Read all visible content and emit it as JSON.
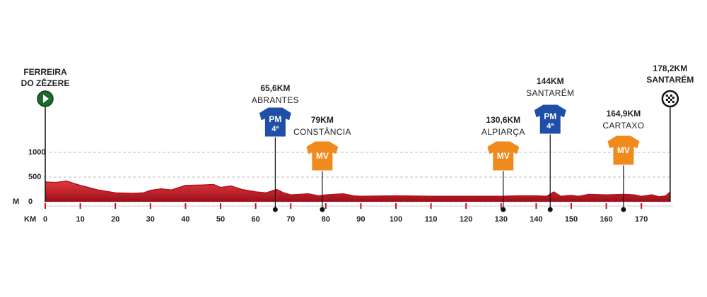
{
  "chart_data": {
    "type": "area",
    "x": [
      0,
      3,
      6,
      10,
      15,
      20,
      25,
      28,
      30,
      33,
      36,
      40,
      45,
      48,
      50,
      53,
      56,
      60,
      63,
      66,
      68,
      70,
      75,
      78,
      80,
      85,
      88,
      90,
      100,
      110,
      120,
      125,
      130,
      135,
      140,
      143,
      145,
      147,
      150,
      152,
      155,
      160,
      165,
      168,
      170,
      173,
      175,
      177,
      178.2
    ],
    "values": [
      400,
      390,
      420,
      330,
      240,
      180,
      170,
      180,
      230,
      260,
      240,
      330,
      340,
      350,
      290,
      320,
      250,
      200,
      180,
      250,
      180,
      140,
      160,
      120,
      140,
      160,
      120,
      110,
      120,
      110,
      110,
      110,
      110,
      120,
      120,
      110,
      200,
      110,
      130,
      110,
      150,
      140,
      150,
      140,
      110,
      140,
      100,
      120,
      200
    ],
    "color": "#d81e2a",
    "xlim": [
      0,
      178.2
    ],
    "ylim": [
      0,
      1000
    ],
    "xticks": [
      0,
      10,
      20,
      30,
      40,
      50,
      60,
      70,
      80,
      90,
      100,
      110,
      120,
      130,
      140,
      150,
      160,
      170
    ],
    "yticks": [
      0,
      500,
      1000
    ],
    "x_label": "KM",
    "y_label": "M",
    "grid": true,
    "start": {
      "km": 0,
      "name_lines": [
        "FERREIRA",
        "DO ZÊZERE"
      ]
    },
    "finish": {
      "km": 178.2,
      "km_label": "178,2KM",
      "name": "SANTARÉM"
    },
    "markers": [
      {
        "km": 65.6,
        "km_label": "65,6KM",
        "name": "ABRANTES",
        "jersey": "PM",
        "category": "4ª",
        "color": "#1f4fa8"
      },
      {
        "km": 79,
        "km_label": "79KM",
        "name": "CONSTÂNCIA",
        "jersey": "MV",
        "color": "#f08a1c"
      },
      {
        "km": 130.6,
        "km_label": "130,6KM",
        "name": "ALPIARÇA",
        "jersey": "MV",
        "color": "#f08a1c"
      },
      {
        "km": 144,
        "km_label": "144KM",
        "name": "SANTARÉM",
        "jersey": "PM",
        "category": "4ª",
        "color": "#1f4fa8"
      },
      {
        "km": 164.9,
        "km_label": "164,9KM",
        "name": "CARTAXO",
        "jersey": "MV",
        "color": "#f08a1c"
      }
    ]
  }
}
